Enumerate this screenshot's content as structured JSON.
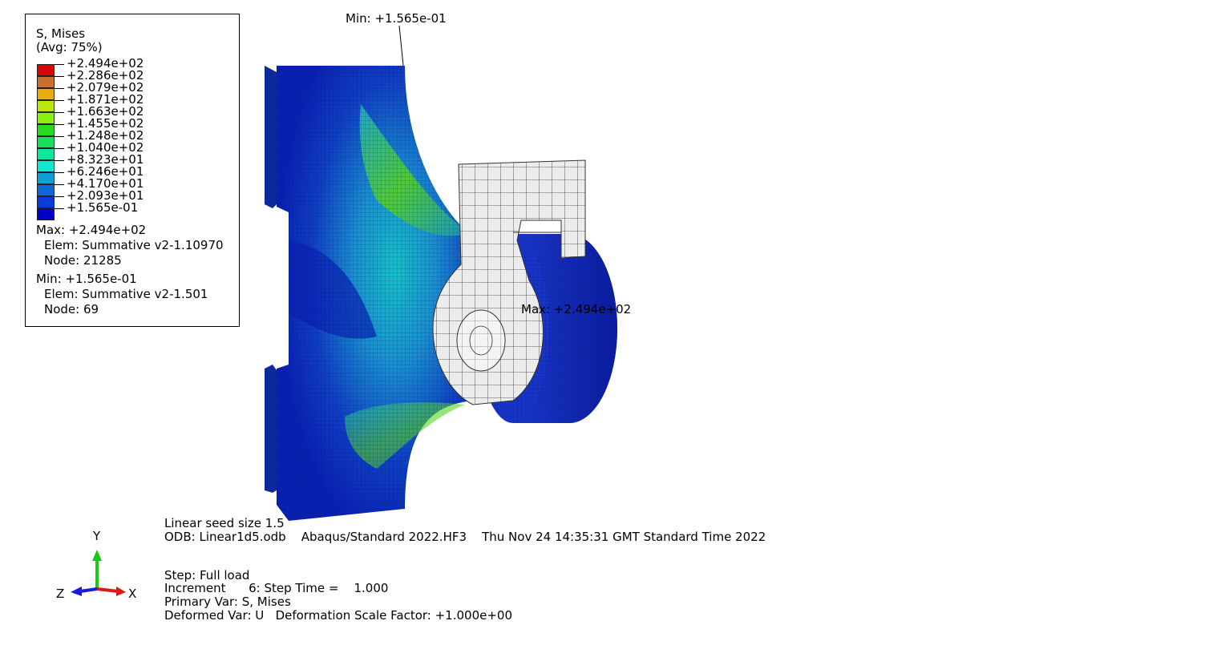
{
  "legend": {
    "variable": "S, Mises",
    "averaging": "(Avg: 75%)",
    "swatch_colors": [
      "#d8070a",
      "#c8702c",
      "#e6ad0b",
      "#bfe60c",
      "#8cf00c",
      "#27dc1a",
      "#18e05c",
      "#10e79c",
      "#0fe7cf",
      "#0f9fd8",
      "#0c67d8",
      "#0a3ad8",
      "#0000c8"
    ],
    "values": [
      "+2.494e+02",
      "+2.286e+02",
      "+2.079e+02",
      "+1.871e+02",
      "+1.663e+02",
      "+1.455e+02",
      "+1.248e+02",
      "+1.040e+02",
      "+8.323e+01",
      "+6.246e+01",
      "+4.170e+01",
      "+2.093e+01",
      "+1.565e-01"
    ],
    "max_line": "Max: +2.494e+02",
    "max_elem": "Elem: Summative v2-1.10970",
    "max_node": "Node: 21285",
    "min_line": "Min: +1.565e-01",
    "min_elem": "Elem: Summative v2-1.501",
    "min_node": "Node: 69"
  },
  "viewport": {
    "min_annotation": "Min: +1.565e-01",
    "max_annotation": "Max: +2.494e+02"
  },
  "triad": {
    "y_label": "Y",
    "x_label": "X",
    "z_label": "Z",
    "colors": {
      "y": "#18c818",
      "x": "#e01818",
      "z": "#1818e0"
    }
  },
  "info": {
    "title": "Linear seed size 1.5",
    "odb_line": "ODB: Linear1d5.odb    Abaqus/Standard 2022.HF3    Thu Nov 24 14:35:31 GMT Standard Time 2022",
    "step": "Step: Full load",
    "increment": "Increment      6: Step Time =    1.000",
    "primary_var": "Primary Var: S, Mises",
    "deformed_var": "Deformed Var: U   Deformation Scale Factor: +1.000e+00"
  }
}
